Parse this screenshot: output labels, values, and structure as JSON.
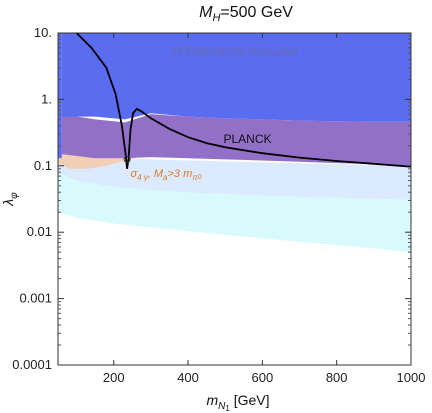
{
  "chart_data": {
    "type": "area",
    "title": {
      "main": "M",
      "sub": "H",
      "rest": "=500 GeV"
    },
    "xlabel": {
      "main": "m",
      "sub": "N",
      "subsub": "1",
      "unit": " [GeV]"
    },
    "ylabel": {
      "main": "λ",
      "sub": "φ"
    },
    "xlim": [
      50,
      1000
    ],
    "ylim": [
      0.0001,
      10
    ],
    "y_scale": "log",
    "x_ticks": [
      200,
      400,
      600,
      800,
      1000
    ],
    "y_ticks": [
      {
        "value": 10,
        "label": "10."
      },
      {
        "value": 1,
        "label": "1."
      },
      {
        "value": 0.1,
        "label": "0.1"
      },
      {
        "value": 0.01,
        "label": "0.01"
      },
      {
        "value": 0.001,
        "label": "0.001"
      },
      {
        "value": 0.0001,
        "label": "0.0001"
      }
    ],
    "grid": false,
    "regions": [
      {
        "id": "cyan-band",
        "color": "#d8fafc",
        "lower": [
          [
            50,
            0.02
          ],
          [
            100,
            0.0165
          ],
          [
            200,
            0.0135
          ],
          [
            300,
            0.0118
          ],
          [
            400,
            0.0103
          ],
          [
            500,
            0.0091
          ],
          [
            600,
            0.0081
          ],
          [
            700,
            0.0072
          ],
          [
            800,
            0.0064
          ],
          [
            900,
            0.0057
          ],
          [
            1000,
            0.005
          ]
        ],
        "upper": [
          [
            50,
            0.1
          ],
          [
            1000,
            0.1
          ]
        ]
      },
      {
        "id": "light-blue-band",
        "color": "#dceaff",
        "lower": [
          [
            50,
            0.08
          ],
          [
            100,
            0.06
          ],
          [
            200,
            0.048
          ],
          [
            300,
            0.043
          ],
          [
            400,
            0.04
          ],
          [
            500,
            0.038
          ],
          [
            600,
            0.036
          ],
          [
            700,
            0.034
          ],
          [
            800,
            0.033
          ],
          [
            900,
            0.032
          ],
          [
            1000,
            0.031
          ]
        ],
        "upper": [
          [
            50,
            0.13
          ],
          [
            200,
            0.13
          ],
          [
            400,
            0.12
          ],
          [
            1000,
            0.1
          ]
        ]
      },
      {
        "id": "orange-band",
        "color": "#f2cfb4",
        "lower": [
          [
            50,
            0.11
          ],
          [
            80,
            0.09
          ],
          [
            130,
            0.09
          ],
          [
            180,
            0.1
          ],
          [
            230,
            0.12
          ],
          [
            260,
            0.13
          ]
        ],
        "upper": [
          [
            50,
            0.25
          ],
          [
            100,
            0.22
          ],
          [
            150,
            0.2
          ],
          [
            200,
            0.2
          ],
          [
            250,
            0.2
          ],
          [
            260,
            0.2
          ]
        ]
      },
      {
        "id": "purple-planck",
        "color": "#9270c8",
        "lower": [
          [
            60,
            0.15
          ],
          [
            150,
            0.13
          ],
          [
            230,
            0.13
          ],
          [
            300,
            0.135
          ],
          [
            400,
            0.13
          ],
          [
            500,
            0.125
          ],
          [
            600,
            0.12
          ],
          [
            700,
            0.115
          ],
          [
            800,
            0.11
          ],
          [
            900,
            0.106
          ],
          [
            1000,
            0.1
          ]
        ],
        "upper": [
          [
            60,
            0.6
          ],
          [
            150,
            0.5
          ],
          [
            230,
            0.45
          ],
          [
            300,
            0.6
          ],
          [
            400,
            0.55
          ],
          [
            500,
            0.52
          ],
          [
            600,
            0.5
          ],
          [
            700,
            0.48
          ],
          [
            800,
            0.47
          ],
          [
            900,
            0.46
          ],
          [
            1000,
            0.46
          ]
        ]
      },
      {
        "id": "blue-fermi",
        "color": "#5a6cf0",
        "lower": [
          [
            60,
            0.55
          ],
          [
            150,
            0.55
          ],
          [
            230,
            0.5
          ],
          [
            300,
            0.62
          ],
          [
            400,
            0.55
          ],
          [
            500,
            0.52
          ],
          [
            600,
            0.5
          ],
          [
            700,
            0.48
          ],
          [
            800,
            0.47
          ],
          [
            900,
            0.46
          ],
          [
            1000,
            0.46
          ]
        ],
        "upper": [
          [
            60,
            10
          ],
          [
            1000,
            10
          ]
        ]
      },
      {
        "id": "blue-left-strip",
        "color": "#5a6cf0",
        "lower": [
          [
            50,
            0.13
          ],
          [
            60,
            0.13
          ]
        ],
        "upper": [
          [
            50,
            10
          ],
          [
            60,
            10
          ]
        ]
      }
    ],
    "curve": {
      "name": "relic-density",
      "color": "#000000",
      "points": [
        [
          100,
          10
        ],
        [
          140,
          6
        ],
        [
          180,
          3
        ],
        [
          205,
          1.2
        ],
        [
          222,
          0.4
        ],
        [
          232,
          0.15
        ],
        [
          236,
          0.09
        ],
        [
          240,
          0.13
        ],
        [
          245,
          0.35
        ],
        [
          252,
          0.62
        ],
        [
          262,
          0.72
        ],
        [
          275,
          0.66
        ],
        [
          300,
          0.52
        ],
        [
          350,
          0.36
        ],
        [
          400,
          0.27
        ],
        [
          450,
          0.22
        ],
        [
          500,
          0.19
        ],
        [
          600,
          0.155
        ],
        [
          700,
          0.133
        ],
        [
          800,
          0.118
        ],
        [
          900,
          0.107
        ],
        [
          1000,
          0.097
        ]
      ]
    },
    "marker": {
      "x": 236,
      "y": 0.125
    },
    "labels": {
      "fermi": {
        "text": "FERMI/HESS Excluded",
        "x": 525,
        "y": 4.5,
        "color": "#6a6ab0"
      },
      "planck": {
        "text": "PLANCK",
        "x": 560,
        "y": 0.22,
        "color": "#111111"
      },
      "sigma": {
        "greek": "σ",
        "sub1": "4 γ",
        "mid": ", M",
        "sub2": "a",
        "gt": ">3 m",
        "sub3": "π",
        "sup3": "0",
        "x": 245,
        "y": 0.068,
        "color": "#e07a2a"
      }
    }
  }
}
